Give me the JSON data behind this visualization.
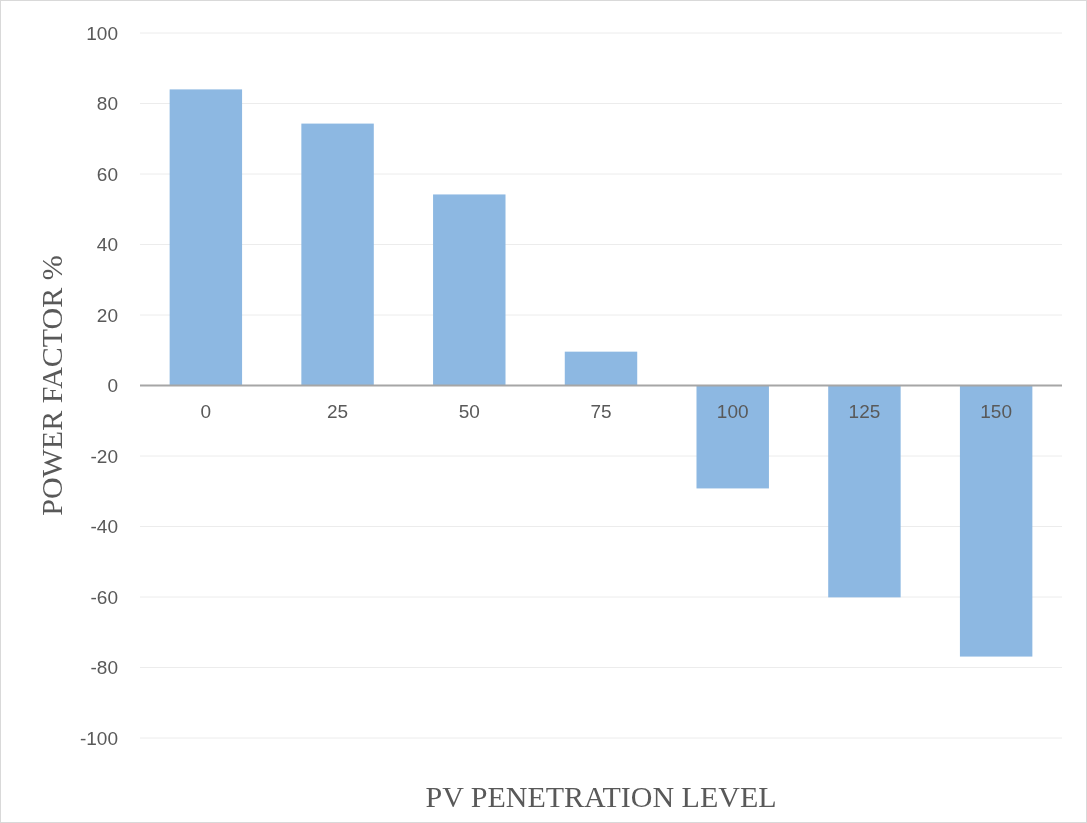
{
  "chart_data": {
    "type": "bar",
    "xlabel": "PV PENETRATION LEVEL",
    "ylabel": "POWER FACTOR %",
    "categories": [
      "0",
      "25",
      "50",
      "75",
      "100",
      "125",
      "150"
    ],
    "values": [
      84,
      74.3,
      54.2,
      9.6,
      -29.2,
      -60.1,
      -76.9
    ],
    "color": "#8db8e2",
    "ylim": [
      -100,
      100
    ],
    "yticks": [
      -100,
      -80,
      -60,
      -40,
      -20,
      0,
      20,
      40,
      60,
      80,
      100
    ],
    "grid": "y"
  }
}
